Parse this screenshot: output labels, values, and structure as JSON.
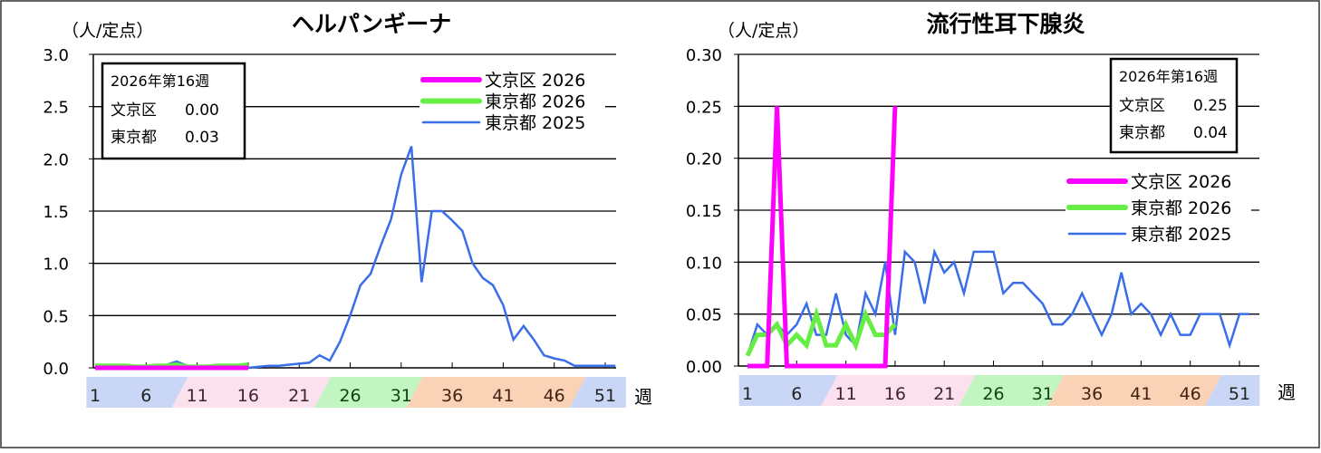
{
  "chart_data": [
    {
      "type": "line",
      "title": "ヘルパンギーナ",
      "ylabel": "（人/定点）",
      "xlabel": "週",
      "ylim": [
        0,
        3.0
      ],
      "yticks": [
        "0.0",
        "0.5",
        "1.0",
        "1.5",
        "2.0",
        "2.5",
        "3.0"
      ],
      "ytick_values": [
        0,
        0.5,
        1,
        1.5,
        2,
        2.5,
        3
      ],
      "xticks": [
        1,
        6,
        11,
        16,
        21,
        26,
        31,
        36,
        41,
        46,
        51
      ],
      "grid": true,
      "legend_placement": "top-right",
      "info_box": {
        "title": "2026年第16週",
        "rows": [
          {
            "label": "文京区",
            "value": "0.00"
          },
          {
            "label": "東京都",
            "value": "0.03"
          }
        ]
      },
      "series": [
        {
          "name": "文京区 2026",
          "color": "#ff00ff",
          "width": 5,
          "values": [
            0,
            0,
            0,
            0,
            0,
            0,
            0,
            0,
            0,
            0,
            0,
            0,
            0,
            0,
            0,
            0
          ]
        },
        {
          "name": "東京都 2026",
          "color": "#66ee44",
          "width": 5,
          "values": [
            0.02,
            0.02,
            0.02,
            0.02,
            0.01,
            0.01,
            0.02,
            0.02,
            0.03,
            0.01,
            0.01,
            0.01,
            0.02,
            0.02,
            0.02,
            0.03
          ]
        },
        {
          "name": "東京都 2025",
          "color": "#3a6ee8",
          "width": 2.5,
          "values": [
            0.0,
            0.01,
            0.01,
            0.01,
            0.0,
            0.0,
            0.0,
            0.03,
            0.06,
            0.02,
            0.01,
            0.01,
            0.01,
            0.02,
            0.0,
            0.0,
            0.01,
            0.02,
            0.02,
            0.03,
            0.04,
            0.05,
            0.12,
            0.07,
            0.25,
            0.5,
            0.79,
            0.9,
            1.17,
            1.42,
            1.85,
            2.12,
            0.82,
            1.5,
            1.5,
            1.41,
            1.31,
            1.0,
            0.86,
            0.79,
            0.6,
            0.27,
            0.4,
            0.27,
            0.12,
            0.09,
            0.07,
            0.02,
            0.02,
            0.02,
            0.02,
            0.02
          ]
        }
      ]
    },
    {
      "type": "line",
      "title": "流行性耳下腺炎",
      "ylabel": "（人/定点）",
      "xlabel": "週",
      "ylim": [
        0,
        0.3
      ],
      "yticks": [
        "0.00",
        "0.05",
        "0.10",
        "0.15",
        "0.20",
        "0.25",
        "0.30"
      ],
      "ytick_values": [
        0,
        0.05,
        0.1,
        0.15,
        0.2,
        0.25,
        0.3
      ],
      "xticks": [
        1,
        6,
        11,
        16,
        21,
        26,
        31,
        36,
        41,
        46,
        51
      ],
      "grid": true,
      "legend_placement": "right",
      "info_box": {
        "title": "2026年第16週",
        "rows": [
          {
            "label": "文京区",
            "value": "0.25"
          },
          {
            "label": "東京都",
            "value": "0.04"
          }
        ]
      },
      "series": [
        {
          "name": "文京区 2026",
          "color": "#ff00ff",
          "width": 5,
          "values": [
            0,
            0,
            0,
            0.25,
            0,
            0,
            0,
            0,
            0,
            0,
            0,
            0,
            0,
            0,
            0,
            0.25
          ]
        },
        {
          "name": "東京都 2026",
          "color": "#66ee44",
          "width": 5,
          "values": [
            0.01,
            0.03,
            0.03,
            0.04,
            0.02,
            0.03,
            0.02,
            0.05,
            0.02,
            0.02,
            0.04,
            0.02,
            0.05,
            0.03,
            0.03,
            0.04
          ]
        },
        {
          "name": "東京都 2025",
          "color": "#3a6ee8",
          "width": 2.5,
          "values": [
            0.01,
            0.04,
            0.03,
            0.04,
            0.03,
            0.04,
            0.06,
            0.03,
            0.03,
            0.07,
            0.03,
            0.02,
            0.07,
            0.05,
            0.1,
            0.03,
            0.11,
            0.1,
            0.06,
            0.11,
            0.09,
            0.1,
            0.07,
            0.11,
            0.11,
            0.11,
            0.07,
            0.08,
            0.08,
            0.07,
            0.06,
            0.04,
            0.04,
            0.05,
            0.07,
            0.05,
            0.03,
            0.05,
            0.09,
            0.05,
            0.06,
            0.05,
            0.03,
            0.05,
            0.03,
            0.03,
            0.05,
            0.05,
            0.05,
            0.02,
            0.05,
            0.05
          ]
        }
      ]
    }
  ],
  "season_bands": [
    {
      "from": 1,
      "to": 8,
      "color": "#c9d6f5",
      "text": "#222"
    },
    {
      "from": 9,
      "to": 22,
      "color": "#fbe0ee",
      "text": "#442233"
    },
    {
      "from": 23,
      "to": 31,
      "color": "#c2f5c2",
      "text": "#114411"
    },
    {
      "from": 32,
      "to": 47,
      "color": "#fad2b6",
      "text": "#442211"
    },
    {
      "from": 48,
      "to": 52,
      "color": "#c9d6f5",
      "text": "#222"
    }
  ]
}
